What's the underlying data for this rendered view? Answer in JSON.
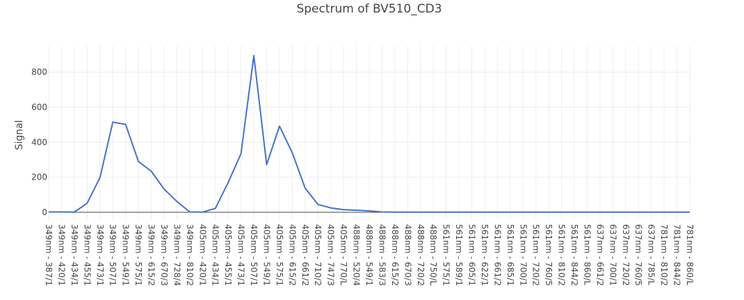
{
  "chart_data": {
    "type": "line",
    "title": "Spectrum of BV510_CD3",
    "xlabel": "",
    "ylabel": "Signal",
    "ylim": [
      0,
      950
    ],
    "yticks": [
      0,
      200,
      400,
      600,
      800
    ],
    "grid": true,
    "line_color": "#4472c4",
    "categories": [
      "349nm - 387/1",
      "349nm - 420/1",
      "349nm - 434/1",
      "349nm - 455/1",
      "349nm - 473/1",
      "349nm - 507/1",
      "349nm - 549/1",
      "349nm - 575/1",
      "349nm - 615/2",
      "349nm - 670/3",
      "349nm - 728/4",
      "349nm - 810/2",
      "405nm - 420/1",
      "405nm - 434/1",
      "405nm - 455/1",
      "405nm - 473/1",
      "405nm - 507/1",
      "405nm - 549/1",
      "405nm - 575/1",
      "405nm - 615/2",
      "405nm - 661/2",
      "405nm - 710/2",
      "405nm - 747/3",
      "405nm - 770/L",
      "488nm - 520/4",
      "488nm - 549/1",
      "488nm - 583/3",
      "488nm - 615/2",
      "488nm - 670/3",
      "488nm - 720/2",
      "488nm - 750/L",
      "561nm - 575/1",
      "561nm - 589/1",
      "561nm - 605/1",
      "561nm - 622/1",
      "561nm - 661/2",
      "561nm - 685/1",
      "561nm - 700/1",
      "561nm - 720/2",
      "561nm - 760/5",
      "561nm - 810/2",
      "561nm - 844/2",
      "561nm - 860/L",
      "637nm - 661/2",
      "637nm - 700/1",
      "637nm - 720/2",
      "637nm - 760/5",
      "637nm - 785/L",
      "781nm - 810/2",
      "781nm - 844/2",
      "781nm - 860/L"
    ],
    "series": [
      {
        "values": [
          2,
          2,
          1,
          52,
          198,
          515,
          502,
          290,
          235,
          133,
          62,
          2,
          1,
          22,
          170,
          335,
          895,
          272,
          492,
          340,
          138,
          45,
          25,
          15,
          12,
          8,
          2,
          1,
          1,
          1,
          1,
          1,
          1,
          1,
          1,
          1,
          1,
          1,
          1,
          1,
          1,
          1,
          1,
          1,
          1,
          1,
          1,
          1,
          1,
          1,
          1
        ]
      }
    ]
  }
}
